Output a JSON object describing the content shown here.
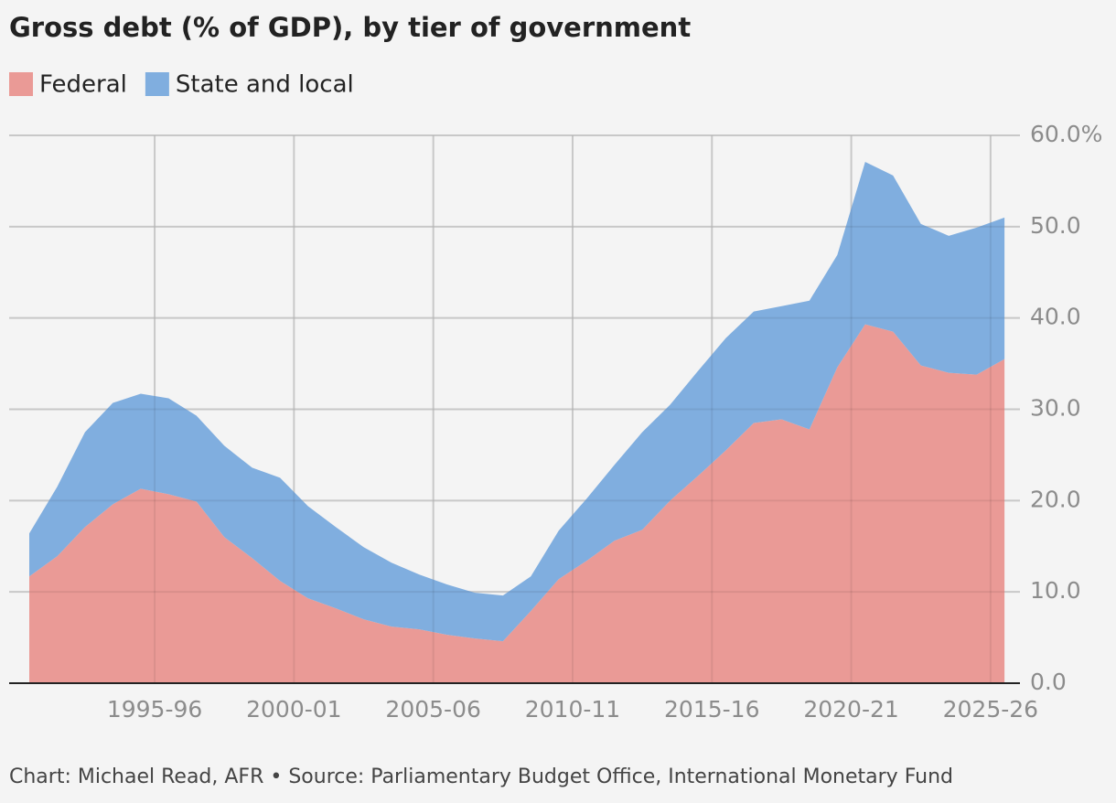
{
  "chart_data": {
    "type": "stacked_area",
    "title": "Gross debt (% of GDP), by tier of government",
    "footer": "Chart: Michael Read, AFR • Source: Parliamentary Budget Office, International Monetary Fund",
    "x": [
      1991,
      1992,
      1993,
      1994,
      1995,
      1996,
      1997,
      1998,
      1999,
      2000,
      2001,
      2002,
      2003,
      2004,
      2005,
      2006,
      2007,
      2008,
      2009,
      2010,
      2011,
      2012,
      2013,
      2014,
      2015,
      2016,
      2017,
      2018,
      2019,
      2020,
      2021,
      2022,
      2023,
      2024,
      2025,
      2026
    ],
    "series": [
      {
        "name": "Federal",
        "color": "#ea9a96",
        "values": [
          11.7,
          13.9,
          17.1,
          19.6,
          21.3,
          20.7,
          19.9,
          16.0,
          13.7,
          11.2,
          9.3,
          8.2,
          7.0,
          6.2,
          5.9,
          5.3,
          4.9,
          4.6,
          7.9,
          11.4,
          13.4,
          15.6,
          16.8,
          20.0,
          22.7,
          25.5,
          28.5,
          28.9,
          27.8,
          34.6,
          39.3,
          38.5,
          34.8,
          34.0,
          33.8,
          35.5
        ]
      },
      {
        "name": "State and local",
        "color": "#80aedf",
        "values": [
          4.7,
          7.6,
          10.4,
          11.1,
          10.4,
          10.5,
          9.4,
          10.0,
          9.9,
          11.3,
          10.1,
          8.9,
          7.9,
          7.0,
          6.0,
          5.5,
          5.0,
          5.0,
          3.8,
          5.3,
          6.8,
          8.3,
          10.7,
          10.5,
          11.5,
          12.3,
          12.2,
          12.4,
          14.1,
          12.3,
          17.8,
          17.1,
          15.5,
          15.0,
          16.1,
          15.5
        ]
      }
    ],
    "xlim": [
      1990.5,
      2026.79
    ],
    "xticks": [
      {
        "value": 1995.5,
        "label": "1995-96"
      },
      {
        "value": 2000.5,
        "label": "2000-01"
      },
      {
        "value": 2005.5,
        "label": "2005-06"
      },
      {
        "value": 2010.5,
        "label": "2010-11"
      },
      {
        "value": 2015.5,
        "label": "2015-16"
      },
      {
        "value": 2020.5,
        "label": "2020-21"
      },
      {
        "value": 2025.5,
        "label": "2025-26"
      }
    ],
    "ylim": [
      0,
      60
    ],
    "yticks": [
      {
        "value": 0,
        "label": "0.0"
      },
      {
        "value": 10,
        "label": "10.0"
      },
      {
        "value": 20,
        "label": "20.0"
      },
      {
        "value": 30,
        "label": "30.0"
      },
      {
        "value": 40,
        "label": "40.0"
      },
      {
        "value": 50,
        "label": "50.0"
      },
      {
        "value": 60,
        "label": "60.0%"
      }
    ],
    "grid": true
  }
}
